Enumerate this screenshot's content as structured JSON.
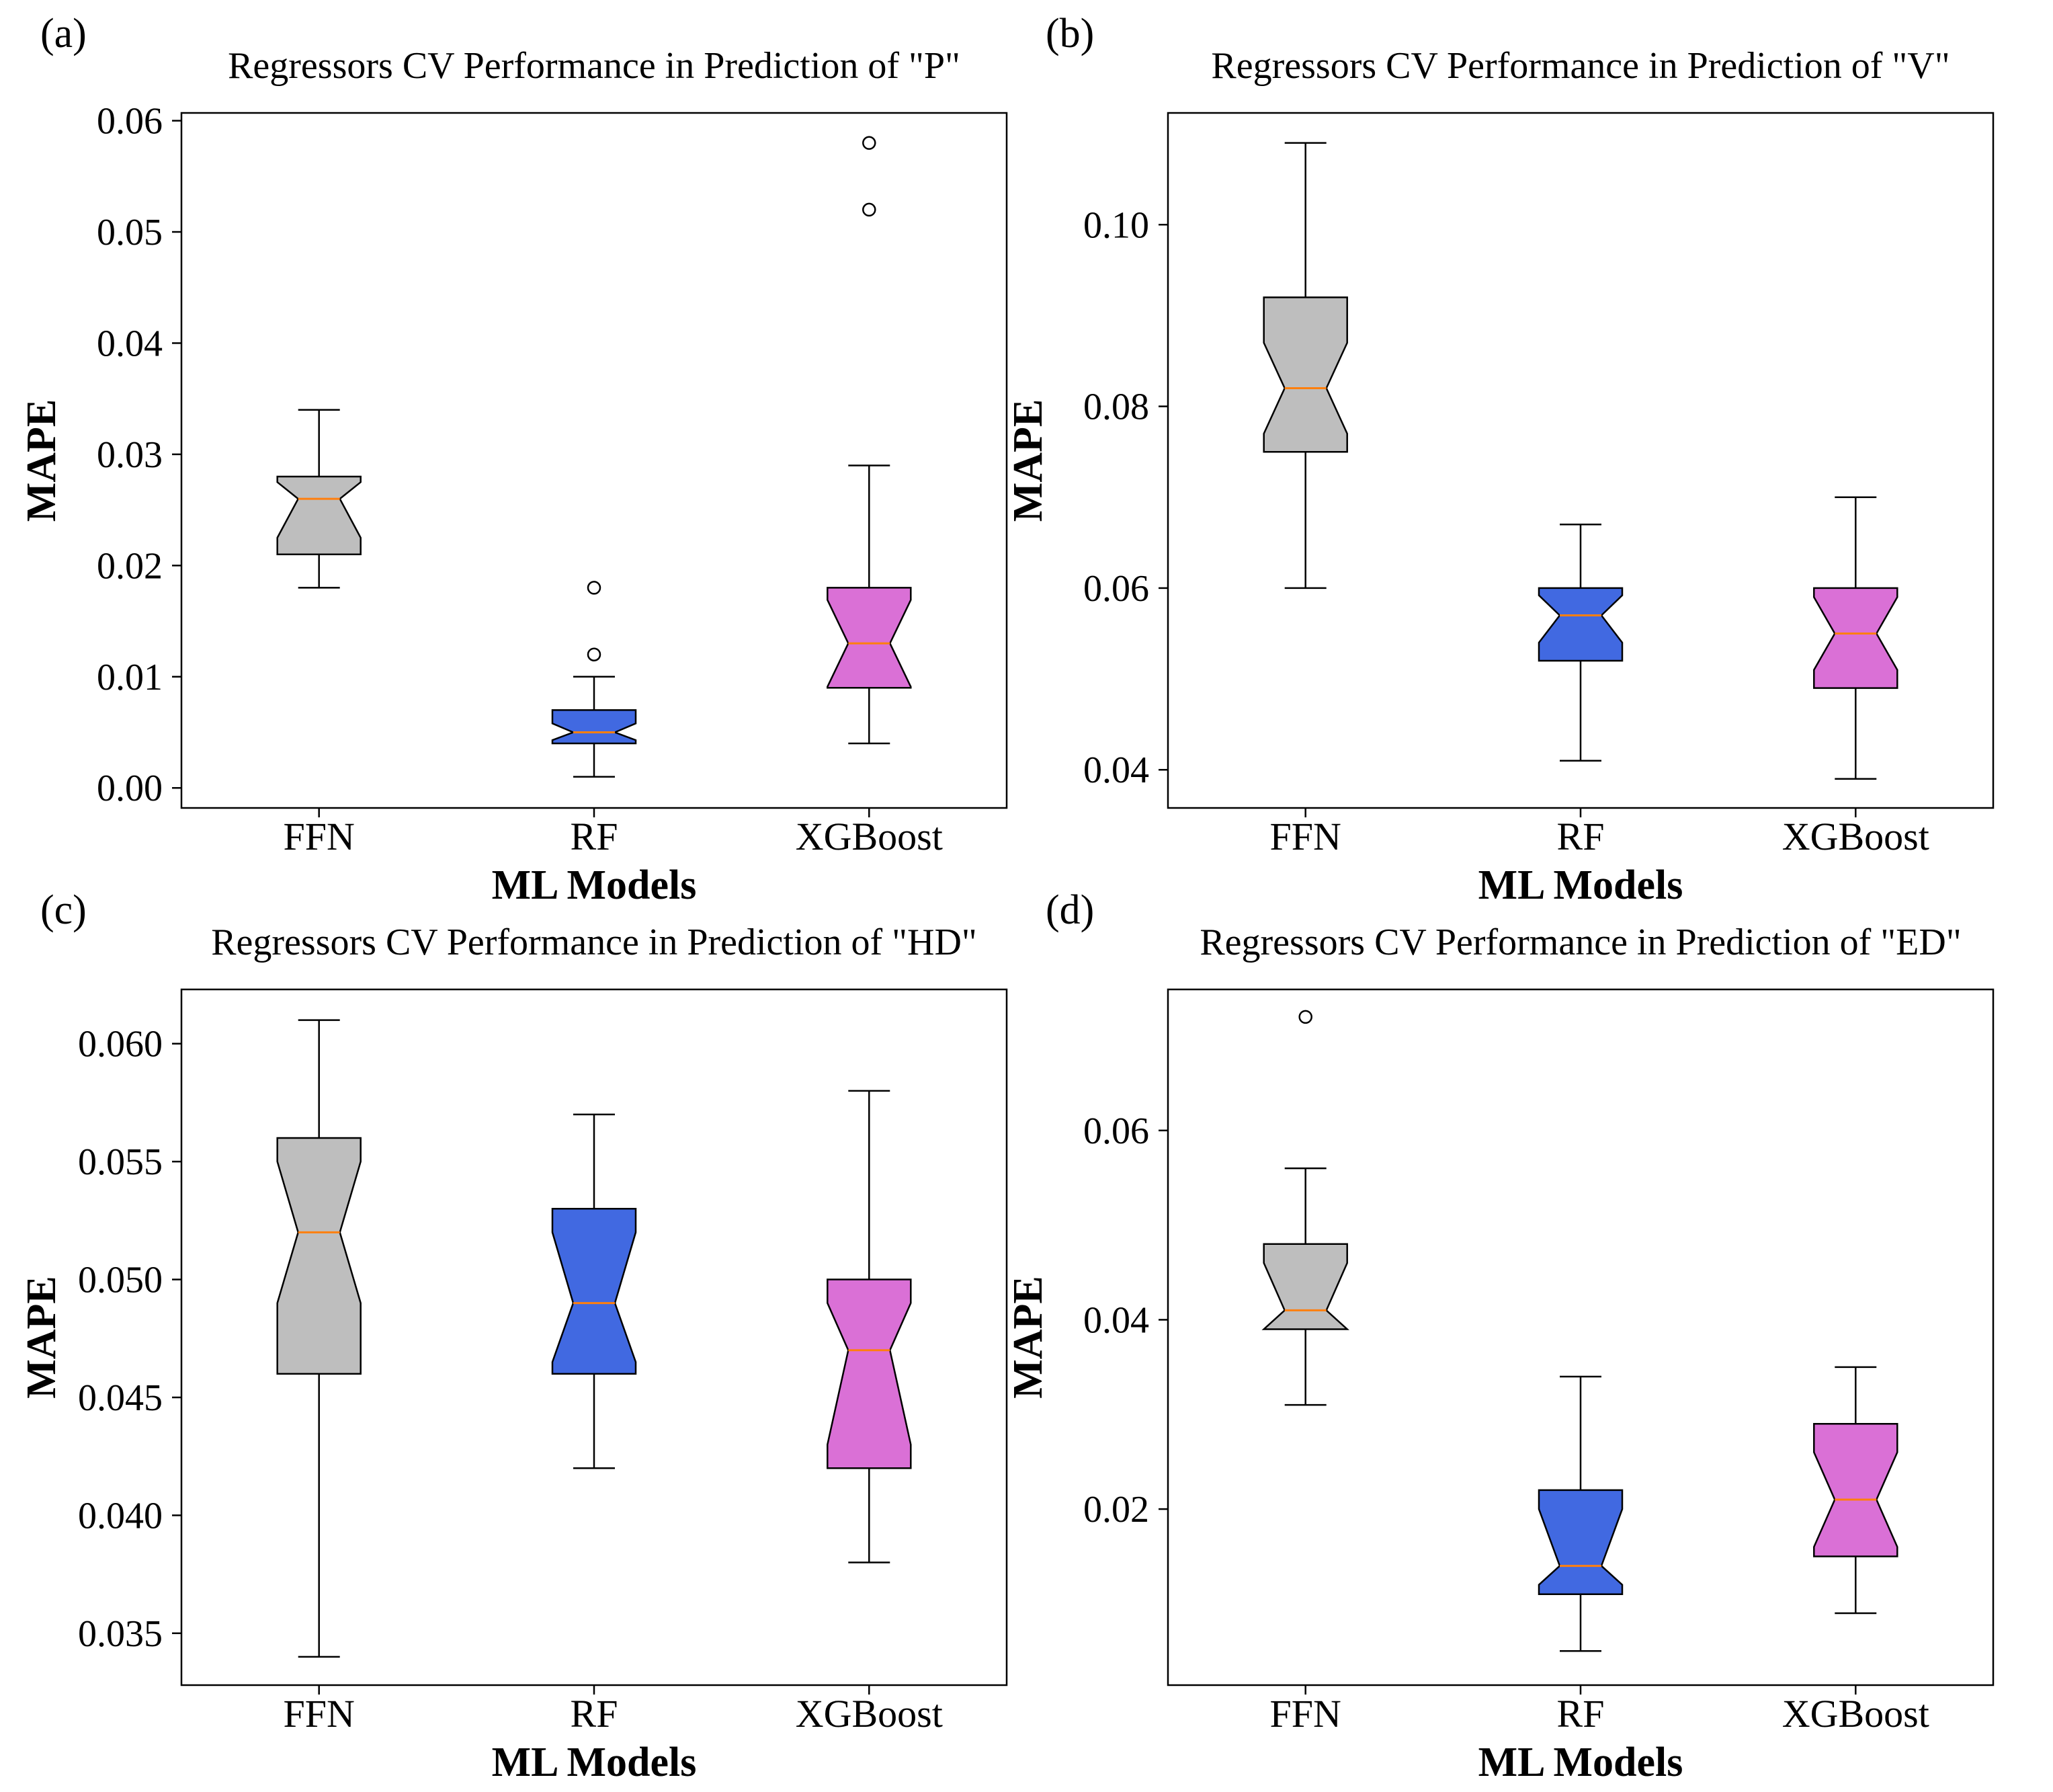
{
  "chart_data": [
    {
      "type": "box",
      "panel_label": "(a)",
      "title": "Regressors CV Performance in Prediction of \"P\"",
      "xlabel": "ML Models",
      "ylabel": "MAPE",
      "ylim": [
        -0.0018,
        0.0607
      ],
      "yticks": [
        0.0,
        0.01,
        0.02,
        0.03,
        0.04,
        0.05,
        0.06
      ],
      "ytick_labels": [
        "0.00",
        "0.01",
        "0.02",
        "0.03",
        "0.04",
        "0.05",
        "0.06"
      ],
      "categories": [
        "FFN",
        "RF",
        "XGBoost"
      ],
      "notched": true,
      "series": [
        {
          "whislo": 0.018,
          "q1": 0.021,
          "med": 0.026,
          "q3": 0.028,
          "whishi": 0.034,
          "notchlo": 0.0225,
          "notchhi": 0.0275,
          "fliers": []
        },
        {
          "whislo": 0.001,
          "q1": 0.004,
          "med": 0.005,
          "q3": 0.007,
          "whishi": 0.01,
          "notchlo": 0.0043,
          "notchhi": 0.0058,
          "fliers": [
            0.012,
            0.018
          ]
        },
        {
          "whislo": 0.004,
          "q1": 0.009,
          "med": 0.013,
          "q3": 0.018,
          "whishi": 0.029,
          "notchlo": 0.0091,
          "notchhi": 0.0169,
          "fliers": [
            0.052,
            0.058
          ]
        }
      ]
    },
    {
      "type": "box",
      "panel_label": "(b)",
      "title": "Regressors CV Performance in Prediction of \"V\"",
      "xlabel": "ML Models",
      "ylabel": "MAPE",
      "ylim": [
        0.0358,
        0.1123
      ],
      "yticks": [
        0.04,
        0.06,
        0.08,
        0.1
      ],
      "ytick_labels": [
        "0.04",
        "0.06",
        "0.08",
        "0.10"
      ],
      "categories": [
        "FFN",
        "RF",
        "XGBoost"
      ],
      "notched": true,
      "series": [
        {
          "whislo": 0.06,
          "q1": 0.075,
          "med": 0.082,
          "q3": 0.092,
          "whishi": 0.109,
          "notchlo": 0.077,
          "notchhi": 0.087,
          "fliers": []
        },
        {
          "whislo": 0.041,
          "q1": 0.052,
          "med": 0.057,
          "q3": 0.06,
          "whishi": 0.067,
          "notchlo": 0.054,
          "notchhi": 0.0592,
          "fliers": []
        },
        {
          "whislo": 0.039,
          "q1": 0.049,
          "med": 0.055,
          "q3": 0.06,
          "whishi": 0.07,
          "notchlo": 0.051,
          "notchhi": 0.059,
          "fliers": []
        }
      ]
    },
    {
      "type": "box",
      "panel_label": "(c)",
      "title": "Regressors CV Performance in Prediction of \"HD\"",
      "xlabel": "ML Models",
      "ylabel": "MAPE",
      "ylim": [
        0.0328,
        0.0623
      ],
      "yticks": [
        0.035,
        0.04,
        0.045,
        0.05,
        0.055,
        0.06
      ],
      "ytick_labels": [
        "0.035",
        "0.040",
        "0.045",
        "0.050",
        "0.055",
        "0.060"
      ],
      "categories": [
        "FFN",
        "RF",
        "XGBoost"
      ],
      "notched": true,
      "series": [
        {
          "whislo": 0.034,
          "q1": 0.046,
          "med": 0.052,
          "q3": 0.056,
          "whishi": 0.061,
          "notchlo": 0.049,
          "notchhi": 0.055,
          "fliers": []
        },
        {
          "whislo": 0.042,
          "q1": 0.046,
          "med": 0.049,
          "q3": 0.053,
          "whishi": 0.057,
          "notchlo": 0.0465,
          "notchhi": 0.052,
          "fliers": []
        },
        {
          "whislo": 0.038,
          "q1": 0.042,
          "med": 0.047,
          "q3": 0.05,
          "whishi": 0.058,
          "notchlo": 0.043,
          "notchhi": 0.049,
          "fliers": []
        }
      ]
    },
    {
      "type": "box",
      "panel_label": "(d)",
      "title": "Regressors CV Performance in Prediction of \"ED\"",
      "xlabel": "ML Models",
      "ylabel": "MAPE",
      "ylim": [
        0.0014,
        0.0749
      ],
      "yticks": [
        0.02,
        0.04,
        0.06
      ],
      "ytick_labels": [
        "0.02",
        "0.04",
        "0.06"
      ],
      "categories": [
        "FFN",
        "RF",
        "XGBoost"
      ],
      "notched": true,
      "series": [
        {
          "whislo": 0.031,
          "q1": 0.039,
          "med": 0.041,
          "q3": 0.048,
          "whishi": 0.056,
          "notchlo": 0.039,
          "notchhi": 0.046,
          "fliers": [
            0.072
          ]
        },
        {
          "whislo": 0.005,
          "q1": 0.011,
          "med": 0.014,
          "q3": 0.022,
          "whishi": 0.034,
          "notchlo": 0.012,
          "notchhi": 0.02,
          "fliers": []
        },
        {
          "whislo": 0.009,
          "q1": 0.015,
          "med": 0.021,
          "q3": 0.029,
          "whishi": 0.035,
          "notchlo": 0.016,
          "notchhi": 0.026,
          "fliers": []
        }
      ]
    }
  ],
  "colors": {
    "box_fills": [
      "#bebebe",
      "#4169e1",
      "#da70d6"
    ],
    "median": "#ff7f0e"
  }
}
